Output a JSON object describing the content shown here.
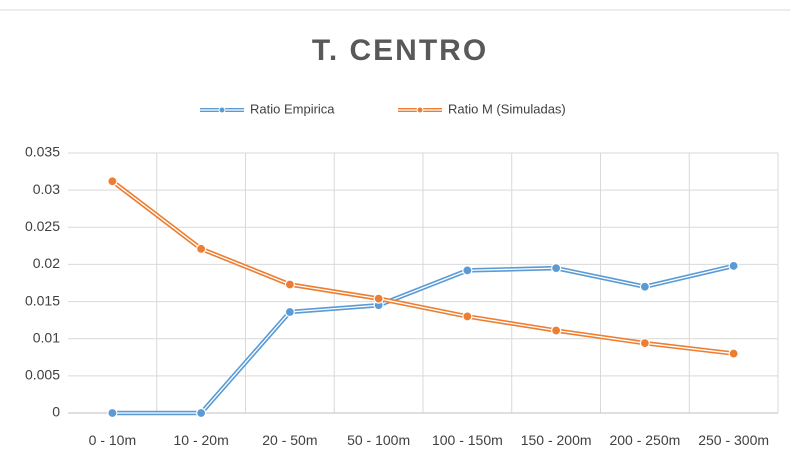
{
  "chart_data": {
    "type": "line",
    "title": "T. CENTRO",
    "categories": [
      "0 - 10m",
      "10 - 20m",
      "20 - 50m",
      "50 - 100m",
      "100 - 150m",
      "150 - 200m",
      "200 - 250m",
      "250 - 300m"
    ],
    "series": [
      {
        "name": "Ratio Empirica",
        "color": "#5b9bd5",
        "values": [
          0,
          0,
          0.0136,
          0.0145,
          0.0192,
          0.0195,
          0.017,
          0.0198
        ]
      },
      {
        "name": "Ratio M (Simuladas)",
        "color": "#ed7d31",
        "values": [
          0.0312,
          0.0221,
          0.0173,
          0.0154,
          0.013,
          0.0111,
          0.0094,
          0.008
        ]
      }
    ],
    "ylim": [
      0,
      0.035
    ],
    "yticks": [
      0,
      0.005,
      0.01,
      0.015,
      0.02,
      0.025,
      0.03,
      0.035
    ],
    "grid": true
  }
}
